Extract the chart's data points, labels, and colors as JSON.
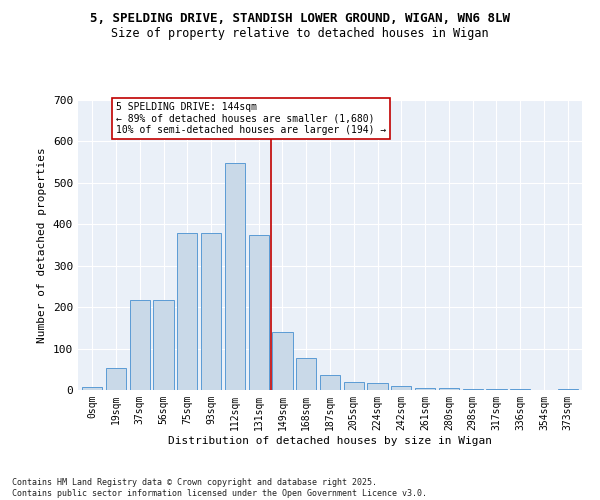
{
  "title_line1": "5, SPELDING DRIVE, STANDISH LOWER GROUND, WIGAN, WN6 8LW",
  "title_line2": "Size of property relative to detached houses in Wigan",
  "xlabel": "Distribution of detached houses by size in Wigan",
  "ylabel": "Number of detached properties",
  "categories": [
    "0sqm",
    "19sqm",
    "37sqm",
    "56sqm",
    "75sqm",
    "93sqm",
    "112sqm",
    "131sqm",
    "149sqm",
    "168sqm",
    "187sqm",
    "205sqm",
    "224sqm",
    "242sqm",
    "261sqm",
    "280sqm",
    "298sqm",
    "317sqm",
    "336sqm",
    "354sqm",
    "373sqm"
  ],
  "values": [
    7,
    52,
    218,
    218,
    380,
    380,
    548,
    375,
    140,
    78,
    36,
    20,
    17,
    10,
    6,
    5,
    3,
    2,
    2,
    1,
    2
  ],
  "bar_color": "#c9d9e8",
  "bar_edge_color": "#5b9bd5",
  "vline_color": "#c00000",
  "annotation_title": "5 SPELDING DRIVE: 144sqm",
  "annotation_line2": "← 89% of detached houses are smaller (1,680)",
  "annotation_line3": "10% of semi-detached houses are larger (194) →",
  "annotation_box_color": "#c00000",
  "ylim": [
    0,
    700
  ],
  "yticks": [
    0,
    100,
    200,
    300,
    400,
    500,
    600,
    700
  ],
  "bg_color": "#eaf0f8",
  "footer": "Contains HM Land Registry data © Crown copyright and database right 2025.\nContains public sector information licensed under the Open Government Licence v3.0."
}
